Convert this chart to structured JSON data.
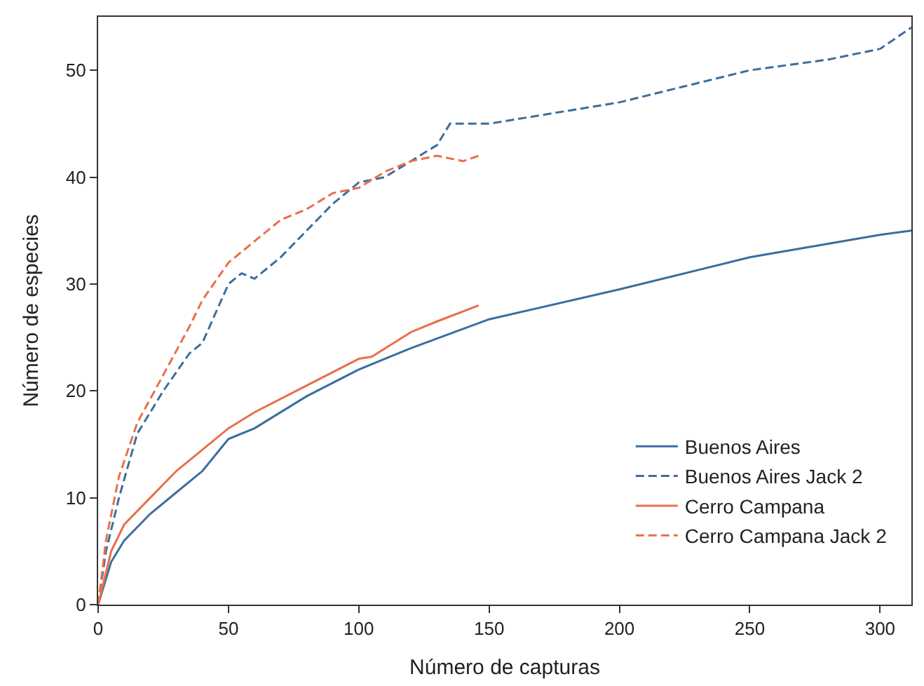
{
  "chart_data": {
    "type": "line",
    "xlabel": "Número de capturas",
    "ylabel": "Número de especies",
    "xlim": [
      0,
      312
    ],
    "ylim": [
      0,
      55
    ],
    "xticks": [
      0,
      50,
      100,
      150,
      200,
      250,
      300
    ],
    "yticks": [
      0,
      10,
      20,
      30,
      40,
      50
    ],
    "grid": false,
    "legend": "bottom right",
    "marker": "none",
    "series": [
      {
        "name": "Buenos Aires",
        "color": "#3b6e9e",
        "line_style": "solid",
        "x": [
          0,
          5,
          10,
          20,
          30,
          40,
          50,
          60,
          80,
          100,
          120,
          150,
          200,
          250,
          300,
          312
        ],
        "values": [
          0,
          4,
          6,
          8.5,
          10.5,
          12.5,
          15.5,
          16.5,
          19.5,
          22,
          24,
          26.7,
          29.5,
          32.5,
          34.6,
          35
        ]
      },
      {
        "name": "Buenos Aires Jack 2",
        "color": "#3b6e9e",
        "line_style": "dashed",
        "x": [
          0,
          3,
          8,
          15,
          25,
          35,
          40,
          50,
          55,
          60,
          70,
          80,
          90,
          100,
          110,
          120,
          130,
          135,
          150,
          175,
          200,
          225,
          250,
          280,
          300,
          312
        ],
        "values": [
          0,
          5,
          10,
          16,
          20,
          23.5,
          24.5,
          30,
          31,
          30.5,
          32.5,
          35,
          37.5,
          39.5,
          40,
          41.5,
          43,
          45,
          45,
          46,
          47,
          48.5,
          50,
          51,
          52,
          54
        ]
      },
      {
        "name": "Cerro Campana",
        "color": "#e8704a",
        "line_style": "solid",
        "x": [
          0,
          5,
          10,
          20,
          30,
          40,
          50,
          60,
          80,
          100,
          105,
          120,
          130,
          146
        ],
        "values": [
          0,
          5,
          7.5,
          10,
          12.5,
          14.5,
          16.5,
          18,
          20.5,
          23,
          23.2,
          25.5,
          26.5,
          28
        ]
      },
      {
        "name": "Cerro Campana Jack 2",
        "color": "#e8704a",
        "line_style": "dashed",
        "x": [
          0,
          3,
          8,
          15,
          25,
          35,
          40,
          50,
          60,
          70,
          80,
          90,
          100,
          110,
          120,
          130,
          140,
          146
        ],
        "values": [
          0,
          6,
          12,
          17,
          21.5,
          26,
          28.5,
          32,
          34,
          36,
          37,
          38.5,
          39,
          40.5,
          41.5,
          42,
          41.5,
          42
        ]
      }
    ]
  }
}
